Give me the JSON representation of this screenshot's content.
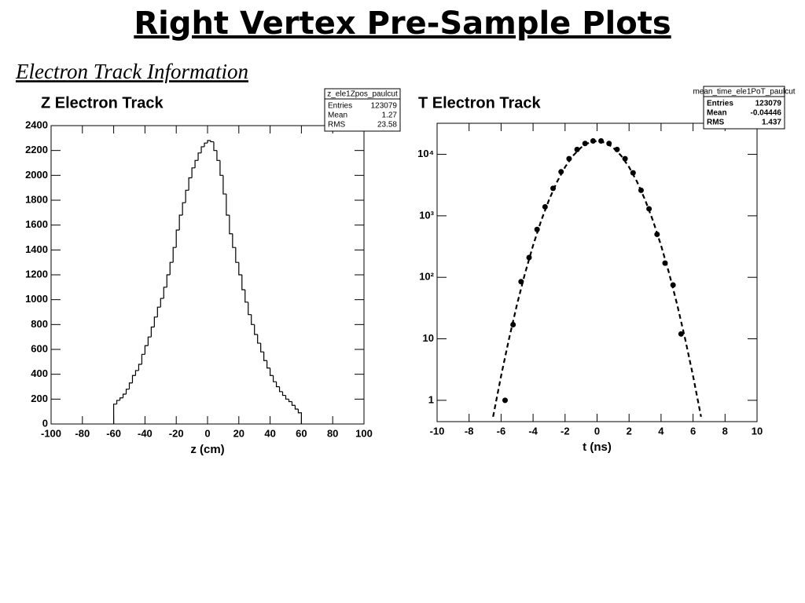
{
  "title": "Right Vertex Pre-Sample Plots",
  "subtitle": "Electron Track Information",
  "chart_data": [
    {
      "type": "histogram",
      "title": "Z Electron Track",
      "x_label": "z (cm)",
      "bins": [
        -60,
        -58,
        -56,
        -54,
        -52,
        -50,
        -48,
        -46,
        -44,
        -42,
        -40,
        -38,
        -36,
        -34,
        -32,
        -30,
        -28,
        -26,
        -24,
        -22,
        -20,
        -18,
        -16,
        -14,
        -12,
        -10,
        -8,
        -6,
        -4,
        -2,
        0,
        2,
        4,
        6,
        8,
        10,
        12,
        14,
        16,
        18,
        20,
        22,
        24,
        26,
        28,
        30,
        32,
        34,
        36,
        38,
        40,
        42,
        44,
        46,
        48,
        50,
        52,
        54,
        56,
        58,
        60
      ],
      "values": [
        160,
        190,
        210,
        240,
        280,
        330,
        390,
        430,
        480,
        560,
        630,
        700,
        780,
        860,
        940,
        1010,
        1100,
        1200,
        1300,
        1420,
        1560,
        1680,
        1780,
        1880,
        1980,
        2060,
        2120,
        2180,
        2230,
        2260,
        2280,
        2270,
        2200,
        2120,
        2000,
        1850,
        1680,
        1530,
        1420,
        1300,
        1200,
        1080,
        980,
        880,
        800,
        720,
        650,
        580,
        510,
        450,
        390,
        340,
        300,
        260,
        230,
        200,
        180,
        150,
        120,
        90
      ],
      "xlim": [
        -100,
        100
      ],
      "xticks": [
        -100,
        -80,
        -60,
        -40,
        -20,
        0,
        20,
        40,
        60,
        80,
        100
      ],
      "ylim": [
        0,
        2400
      ],
      "yticks": [
        0,
        200,
        400,
        600,
        800,
        1000,
        1200,
        1400,
        1600,
        1800,
        2000,
        2200,
        2400
      ],
      "stats": {
        "title": "z_ele1Zpos_paulcut",
        "rows": [
          {
            "label": "Entries",
            "value": 123079
          },
          {
            "label": "Mean",
            "value": 1.27
          },
          {
            "label": "RMS",
            "value": 23.58
          }
        ]
      }
    },
    {
      "type": "scatter",
      "title": "T Electron Track",
      "x_label": "t (ns)",
      "log_y": true,
      "points": {
        "x": [
          -5.75,
          -5.25,
          -4.75,
          -4.25,
          -3.75,
          -3.25,
          -2.75,
          -2.25,
          -1.75,
          -1.25,
          -0.75,
          -0.25,
          0.25,
          0.75,
          1.25,
          1.75,
          2.25,
          2.75,
          3.25,
          3.75,
          4.25,
          4.75,
          5.25
        ],
        "values": [
          1,
          17,
          85,
          210,
          600,
          1400,
          2800,
          5200,
          8500,
          12000,
          15000,
          16500,
          16500,
          15000,
          12000,
          8500,
          5000,
          2600,
          1300,
          500,
          170,
          75,
          12
        ]
      },
      "fit": {
        "x": [
          -6.5,
          -6,
          -5.5,
          -5,
          -4.5,
          -4,
          -3.5,
          -3,
          -2.5,
          -2,
          -1.5,
          -1,
          -0.5,
          0,
          0.5,
          1,
          1.5,
          2,
          2.5,
          3,
          3.5,
          4,
          4.5,
          5,
          5.5,
          6,
          6.5
        ],
        "values": [
          0.54,
          2.49,
          10.1,
          36.6,
          117,
          330,
          826,
          1828,
          3580,
          6205,
          9520,
          12920,
          15520,
          16500,
          15520,
          12920,
          9520,
          6205,
          3580,
          1828,
          826,
          330,
          117,
          36.6,
          10.1,
          2.49,
          0.54
        ]
      },
      "xlim": [
        -10,
        10
      ],
      "xticks": [
        -10,
        -8,
        -6,
        -4,
        -2,
        0,
        2,
        4,
        6,
        8,
        10
      ],
      "ylim": [
        0.45,
        32000
      ],
      "yticks": [
        1,
        10,
        {
          "value": 100,
          "label": "10²"
        },
        {
          "value": 1000,
          "label": "10³"
        },
        {
          "value": 10000,
          "label": "10⁴"
        }
      ],
      "stats": {
        "title": "mean_time_ele1PoT_paulcut",
        "rows": [
          {
            "label": "Entries",
            "value": 123079
          },
          {
            "label": "Mean",
            "value": -0.04446
          },
          {
            "label": "RMS",
            "value": 1.437
          }
        ]
      }
    }
  ]
}
